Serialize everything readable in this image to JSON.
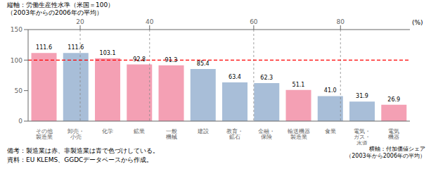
{
  "chart_data": {
    "type": "bar",
    "title": "縦軸：労働生産性水準（米国＝100）",
    "subtitle": "（2003年からの2006年の平均）",
    "categories": [
      "その他\n製造業",
      "卸売・\n小売",
      "化学",
      "鉱業",
      "一般\n機械",
      "建設",
      "教育・\n鉱石",
      "金融・\n保険",
      "輸送機器\n製造業",
      "食業",
      "電気・\nガス・\n水道",
      "電気\n機器"
    ],
    "values": [
      111.6,
      111.6,
      103.1,
      92.8,
      91.3,
      85.4,
      63.4,
      62.3,
      51.1,
      41.0,
      31.9,
      26.9
    ],
    "value_labels": [
      "111.6",
      "111.6",
      "103.1",
      "92.8",
      "91.3",
      "85.4",
      "63.4",
      "62.3",
      "51.1",
      "41.0",
      "31.9",
      "26.9"
    ],
    "data_labels": true,
    "colors": [
      "#F4A0B4",
      "#A8BED8",
      "#F4A0B4",
      "#F4A0B4",
      "#F4A0B4",
      "#A8BED8",
      "#A8BED8",
      "#A8BED8",
      "#F4A0B4",
      "#A8BED8",
      "#A8BED8",
      "#F4A0B4"
    ],
    "ylim": [
      0,
      150
    ],
    "yticks": [
      0,
      50,
      100,
      150
    ],
    "y_label": "(%)",
    "x_label": "横軸：付加価値シェア\n（2003年から2006年の平均）",
    "notes": [
      "備考：製造業は赤、非製造業は青で色づけしている。",
      "資料：EU KLEMS、GGDCデータベースから作成。"
    ],
    "reference_line": {
      "value": 100,
      "color": "#FF0000"
    },
    "annotations": [
      {
        "x": 1.5,
        "text": "20",
        "color": "#888888"
      },
      {
        "x": 3.5,
        "text": "40",
        "color": "#888888"
      },
      {
        "x": 6.5,
        "text": "60",
        "color": "#888888"
      },
      {
        "x": 9.0,
        "text": "80",
        "color": "#888888"
      }
    ],
    "grid": false
  }
}
